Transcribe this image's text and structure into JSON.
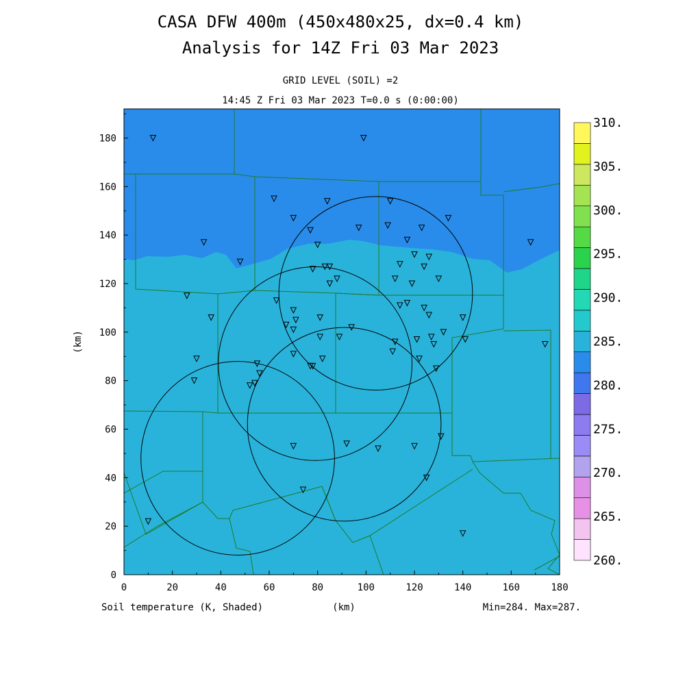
{
  "title_line1": "CASA DFW 400m (450x480x25, dx=0.4 km)",
  "title_line2": "Analysis for 14Z Fri 03 Mar 2023",
  "subtitle_line1": "GRID LEVEL (SOIL) =2",
  "subtitle_line2": "14:45 Z Fri 03 Mar 2023   T=0.0 s (0:00:00)",
  "bottom_left": "Soil temperature (K, Shaded)",
  "bottom_center": "(km)",
  "bottom_right": "Min=284. Max=287.",
  "chart_data": {
    "type": "map",
    "xlabel": "(km)",
    "ylabel": "(km)",
    "xlim": [
      0,
      180
    ],
    "ylim": [
      0,
      192
    ],
    "xticks": [
      "0",
      "20",
      "40",
      "60",
      "80",
      "100",
      "120",
      "140",
      "160",
      "180"
    ],
    "yticks": [
      "0",
      "20",
      "40",
      "60",
      "80",
      "100",
      "120",
      "140",
      "160",
      "180"
    ],
    "colorbar": {
      "labels": [
        "260.",
        "265.",
        "270.",
        "275.",
        "280.",
        "285.",
        "290.",
        "295.",
        "300.",
        "305.",
        "310."
      ],
      "colors": [
        "#fde3fd",
        "#f2c4ef",
        "#e691e6",
        "#dd91e6",
        "#b3a2ee",
        "#9a8cf6",
        "#8b7cf0",
        "#7d6be6",
        "#3f78ee",
        "#2a8cea",
        "#2ab3da",
        "#24c9cd",
        "#22d8b5",
        "#1fd58a",
        "#2bd24c",
        "#55da46",
        "#81e050",
        "#a4e452",
        "#cde85e",
        "#e1f21e",
        "#fff85c"
      ]
    },
    "radar_circles": [
      {
        "cx": 104,
        "cy": 116,
        "r": 40
      },
      {
        "cx": 79,
        "cy": 87,
        "r": 40
      },
      {
        "cx": 91,
        "cy": 62,
        "r": 40
      },
      {
        "cx": 47,
        "cy": 48,
        "r": 40
      }
    ],
    "stations": [
      [
        12,
        180
      ],
      [
        99,
        180
      ],
      [
        62,
        155
      ],
      [
        84,
        154
      ],
      [
        110,
        154
      ],
      [
        70,
        147
      ],
      [
        134,
        147
      ],
      [
        77,
        142
      ],
      [
        97,
        143
      ],
      [
        109,
        144
      ],
      [
        123,
        143
      ],
      [
        33,
        137
      ],
      [
        80,
        136
      ],
      [
        117,
        138
      ],
      [
        168,
        137
      ],
      [
        120,
        132
      ],
      [
        126,
        131
      ],
      [
        48,
        129
      ],
      [
        83,
        127
      ],
      [
        85,
        127
      ],
      [
        78,
        126
      ],
      [
        114,
        128
      ],
      [
        124,
        127
      ],
      [
        88,
        122
      ],
      [
        112,
        122
      ],
      [
        130,
        122
      ],
      [
        85,
        120
      ],
      [
        119,
        120
      ],
      [
        26,
        115
      ],
      [
        63,
        113
      ],
      [
        117,
        112
      ],
      [
        114,
        111
      ],
      [
        70,
        109
      ],
      [
        124,
        110
      ],
      [
        126,
        107
      ],
      [
        36,
        106
      ],
      [
        71,
        105
      ],
      [
        81,
        106
      ],
      [
        140,
        106
      ],
      [
        67,
        103
      ],
      [
        94,
        102
      ],
      [
        70,
        101
      ],
      [
        132,
        100
      ],
      [
        89,
        98
      ],
      [
        81,
        98
      ],
      [
        121,
        97
      ],
      [
        127,
        98
      ],
      [
        112,
        96
      ],
      [
        141,
        97
      ],
      [
        174,
        95
      ],
      [
        128,
        95
      ],
      [
        111,
        92
      ],
      [
        70,
        91
      ],
      [
        30,
        89
      ],
      [
        82,
        89
      ],
      [
        122,
        89
      ],
      [
        55,
        87
      ],
      [
        77,
        86
      ],
      [
        78,
        86
      ],
      [
        129,
        85
      ],
      [
        56,
        83
      ],
      [
        29,
        80
      ],
      [
        54,
        79
      ],
      [
        52,
        78
      ],
      [
        131,
        57
      ],
      [
        92,
        54
      ],
      [
        70,
        53
      ],
      [
        120,
        53
      ],
      [
        105,
        52
      ],
      [
        125,
        40
      ],
      [
        74,
        35
      ],
      [
        10,
        22
      ],
      [
        140,
        17
      ]
    ]
  }
}
